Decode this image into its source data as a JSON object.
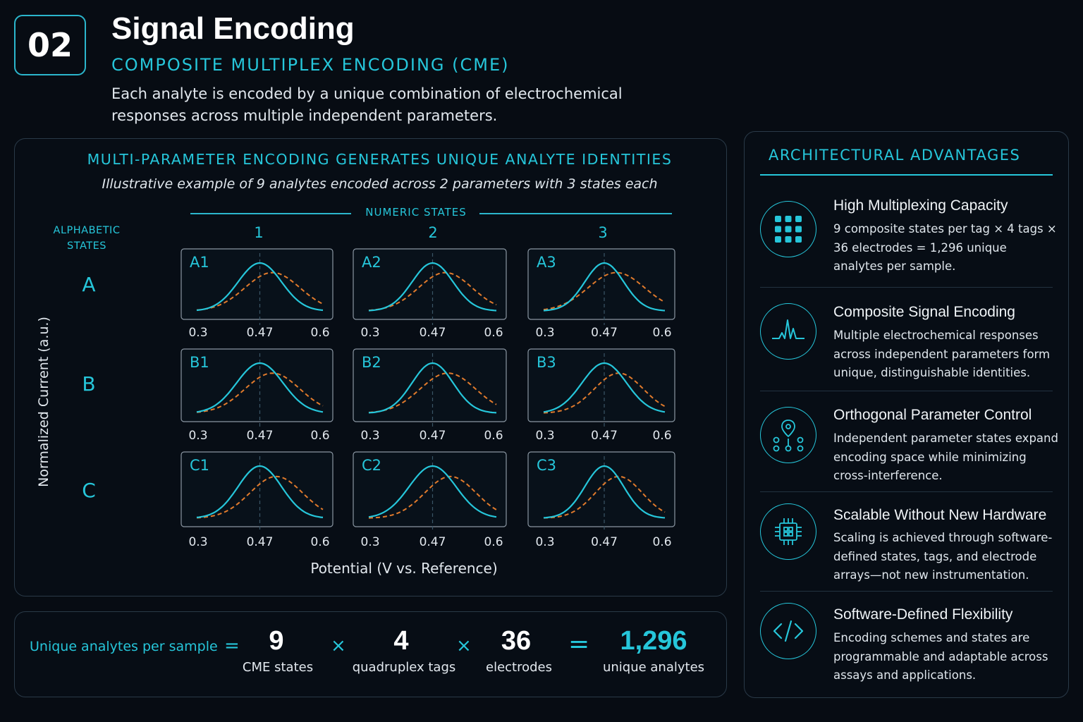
{
  "header": {
    "number": "02",
    "title": "Signal Encoding",
    "subtitle": "COMPOSITE MULTIPLEX ENCODING (CME)",
    "description": "Each analyte is encoded by a unique combination of electrochemical responses across multiple independent parameters."
  },
  "encoding": {
    "title": "MULTI-PARAMETER ENCODING GENERATES UNIQUE ANALYTE IDENTITIES",
    "subtitle": "Illustrative example of 9 analytes encoded across 2 parameters with 3 states each",
    "numeric_states_label": "NUMERIC STATES",
    "alphabetic_states_label": "ALPHABETIC STATES",
    "columns": [
      "1",
      "2",
      "3"
    ],
    "rows": [
      "A",
      "B",
      "C"
    ],
    "cells": [
      "A1",
      "A2",
      "A3",
      "B1",
      "B2",
      "B3",
      "C1",
      "C2",
      "C3"
    ],
    "tick_labels": [
      "0.3",
      "0.47",
      "0.6"
    ],
    "y_axis_label": "Normalized Current (a.u.)",
    "x_axis_label": "Potential (V vs. Reference)",
    "colors": {
      "solid_curve": "#26c6da",
      "dashed_curve": "#e07a2c",
      "accent": "#26c6da"
    }
  },
  "formula": {
    "label": "Unique analytes per sample",
    "equals_symbol": "=",
    "times_symbol": "×",
    "terms": [
      {
        "value": "9",
        "caption": "CME states"
      },
      {
        "value": "4",
        "caption": "quadruplex tags"
      },
      {
        "value": "36",
        "caption": "electrodes"
      }
    ],
    "result": {
      "value": "1,296",
      "caption": "unique analytes"
    }
  },
  "advantages": {
    "title": "ARCHITECTURAL ADVANTAGES",
    "items": [
      {
        "icon": "grid-dots-icon",
        "heading": "High Multiplexing Capacity",
        "text": "9 composite states per tag × 4 tags × 36 electrodes = 1,296 unique analytes per sample."
      },
      {
        "icon": "signal-peak-icon",
        "heading": "Composite Signal Encoding",
        "text": "Multiple electrochemical responses across independent parameters form unique, distinguishable identities."
      },
      {
        "icon": "location-nodes-icon",
        "heading": "Orthogonal Parameter Control",
        "text": "Independent parameter states expand encoding space while minimizing cross-interference."
      },
      {
        "icon": "chip-icon",
        "heading": "Scalable Without New Hardware",
        "text": "Scaling is achieved through software-defined states, tags, and electrode arrays—not new instrumentation."
      },
      {
        "icon": "code-icon",
        "heading": "Software-Defined Flexibility",
        "text": "Encoding schemes and states are programmable and adaptable across assays and applications."
      }
    ]
  }
}
